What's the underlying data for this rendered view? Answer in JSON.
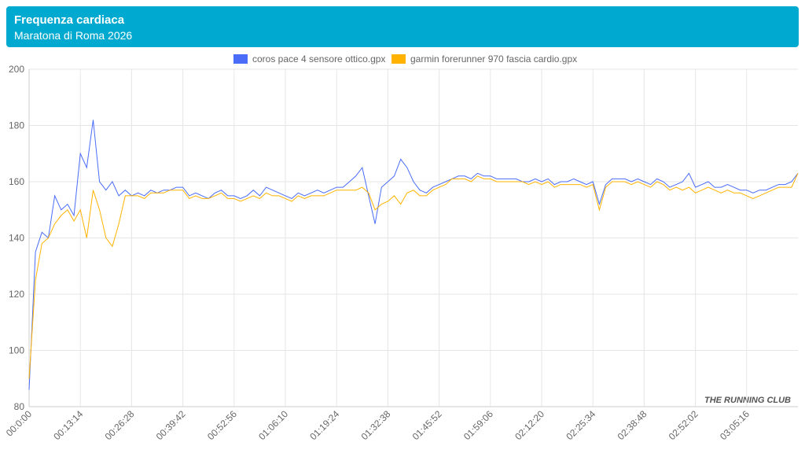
{
  "header": {
    "title": "Frequenza cardiaca",
    "subtitle": "Maratona di Roma 2026"
  },
  "watermark": "THE RUNNING CLUB",
  "chart_data": {
    "type": "line",
    "categories": [
      "00:0:00",
      null,
      null,
      null,
      null,
      null,
      null,
      null,
      "00:13:14",
      null,
      null,
      null,
      null,
      null,
      null,
      null,
      "00:26:28",
      null,
      null,
      null,
      null,
      null,
      null,
      null,
      "00:39:42",
      null,
      null,
      null,
      null,
      null,
      null,
      null,
      "00:52:56",
      null,
      null,
      null,
      null,
      null,
      null,
      null,
      "01:06:10",
      null,
      null,
      null,
      null,
      null,
      null,
      null,
      "01:19:24",
      null,
      null,
      null,
      null,
      null,
      null,
      null,
      "01:32:38",
      null,
      null,
      null,
      null,
      null,
      null,
      null,
      "01:45:52",
      null,
      null,
      null,
      null,
      null,
      null,
      null,
      "01:59:06",
      null,
      null,
      null,
      null,
      null,
      null,
      null,
      "02:12:20",
      null,
      null,
      null,
      null,
      null,
      null,
      null,
      "02:25:34",
      null,
      null,
      null,
      null,
      null,
      null,
      null,
      "02:38:48",
      null,
      null,
      null,
      null,
      null,
      null,
      null,
      "02:52:02",
      null,
      null,
      null,
      null,
      null,
      null,
      null,
      "03:05:16",
      null,
      null,
      null,
      null,
      null,
      null,
      null,
      null
    ],
    "series": [
      {
        "name": "coros pace 4 sensore ottico.gpx",
        "color": "#4a6cf7",
        "values": [
          86,
          135,
          142,
          140,
          155,
          150,
          152,
          148,
          170,
          165,
          182,
          160,
          157,
          160,
          155,
          157,
          155,
          156,
          155,
          157,
          156,
          157,
          157,
          158,
          158,
          155,
          156,
          155,
          154,
          156,
          157,
          155,
          155,
          154,
          155,
          157,
          155,
          158,
          157,
          156,
          155,
          154,
          156,
          155,
          156,
          157,
          156,
          157,
          158,
          158,
          160,
          162,
          165,
          155,
          145,
          158,
          160,
          162,
          168,
          165,
          160,
          157,
          156,
          158,
          159,
          160,
          161,
          162,
          162,
          161,
          163,
          162,
          162,
          161,
          161,
          161,
          161,
          160,
          160,
          161,
          160,
          161,
          159,
          160,
          160,
          161,
          160,
          159,
          160,
          152,
          159,
          161,
          161,
          161,
          160,
          161,
          160,
          159,
          161,
          160,
          158,
          159,
          160,
          163,
          158,
          159,
          160,
          158,
          158,
          159,
          158,
          157,
          157,
          156,
          157,
          157,
          158,
          159,
          159,
          160,
          163
        ]
      },
      {
        "name": "garmin forerunner 970 fascia cardio.gpx",
        "color": "#ffb300",
        "values": [
          90,
          125,
          138,
          140,
          145,
          148,
          150,
          146,
          150,
          140,
          157,
          150,
          140,
          137,
          145,
          155,
          155,
          155,
          154,
          156,
          156,
          156,
          157,
          157,
          157,
          154,
          155,
          154,
          154,
          155,
          156,
          154,
          154,
          153,
          154,
          155,
          154,
          156,
          155,
          155,
          154,
          153,
          155,
          154,
          155,
          155,
          155,
          156,
          157,
          157,
          157,
          157,
          158,
          156,
          150,
          152,
          153,
          155,
          152,
          156,
          157,
          155,
          155,
          157,
          158,
          159,
          161,
          161,
          161,
          160,
          162,
          161,
          161,
          160,
          160,
          160,
          160,
          160,
          159,
          160,
          159,
          160,
          158,
          159,
          159,
          159,
          159,
          158,
          159,
          150,
          158,
          160,
          160,
          160,
          159,
          160,
          159,
          158,
          160,
          159,
          157,
          158,
          157,
          158,
          156,
          157,
          158,
          157,
          156,
          157,
          156,
          156,
          155,
          154,
          155,
          156,
          157,
          158,
          158,
          158,
          163
        ]
      }
    ],
    "ylim": [
      80,
      200
    ],
    "yticks": [
      80,
      100,
      120,
      140,
      160,
      180,
      200
    ],
    "grid": true
  }
}
